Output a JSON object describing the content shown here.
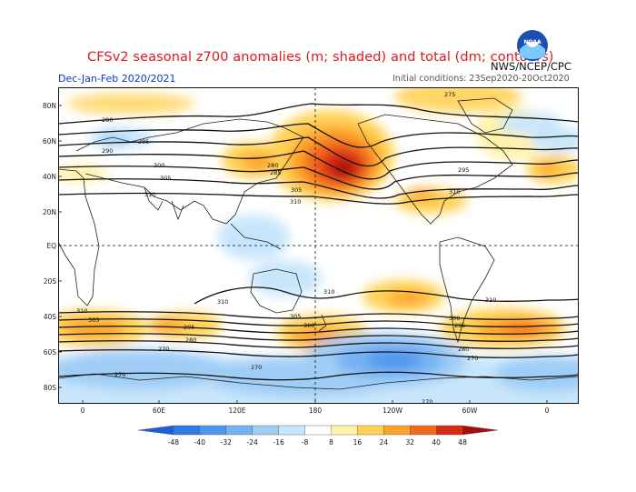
{
  "header": {
    "title": "CFSv2 seasonal z700 anomalies (m; shaded) and total (dm; contours)",
    "agency": "NWS/NCEP/CPC",
    "season": "Dec-Jan-Feb 2020/2021",
    "initial_conditions": "Initial conditions: 23Sep2020-20Oct2020",
    "logo_text": "NOAA"
  },
  "axes": {
    "lat_labels": [
      "80N",
      "60N",
      "40N",
      "20N",
      "EQ",
      "20S",
      "40S",
      "60S",
      "80S"
    ],
    "lon_labels": [
      "0",
      "60E",
      "120E",
      "180",
      "120W",
      "60W",
      "0"
    ]
  },
  "colorbar": {
    "ticks": [
      "-48",
      "-40",
      "-32",
      "-24",
      "-16",
      "-8",
      "8",
      "16",
      "24",
      "32",
      "40",
      "48"
    ],
    "colors": [
      "#1e5fd8",
      "#2f7ae6",
      "#4f96ee",
      "#76b2f3",
      "#9fcdf6",
      "#c8e6fb",
      "#ffffff",
      "#fff3a8",
      "#ffd255",
      "#ffa42a",
      "#f26a1c",
      "#d52c12",
      "#a70d0a"
    ]
  },
  "contour_labels": {
    "north": [
      "280",
      "285",
      "290",
      "300",
      "305",
      "310",
      "275",
      "295"
    ],
    "south": [
      "310",
      "305",
      "300",
      "295",
      "290",
      "285",
      "280",
      "275",
      "270"
    ]
  },
  "anomaly_centers": [
    {
      "label": "North Pacific positive",
      "level": 48
    },
    {
      "label": "Southern Ocean ring negative",
      "level": -24
    }
  ]
}
